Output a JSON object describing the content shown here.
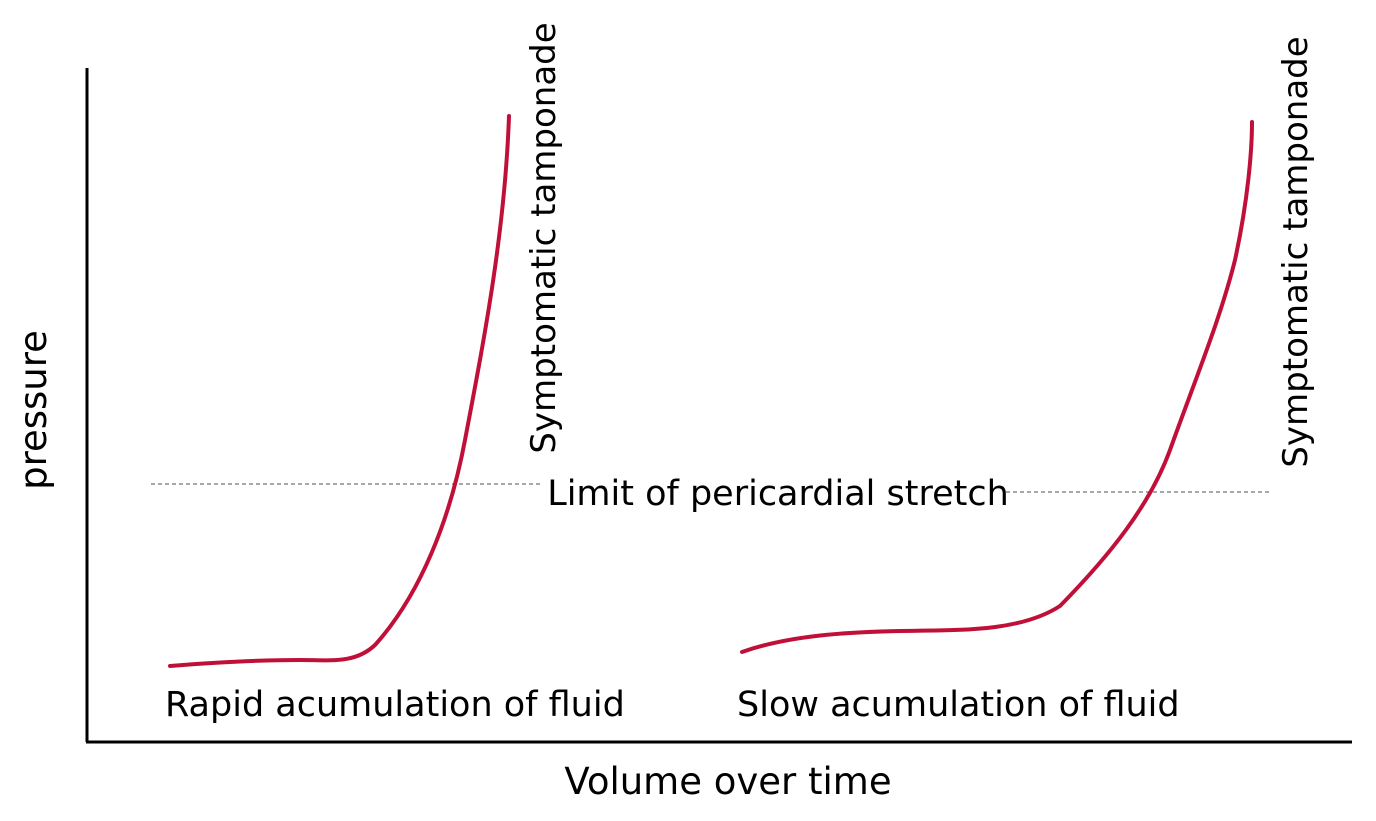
{
  "diagram": {
    "y_axis_label": "pressure",
    "x_axis_label": "Volume over time",
    "limit_label": "Limit of pericardial stretch",
    "curve_color": "#c0103a",
    "curves": [
      {
        "id": "rapid",
        "caption": "Rapid acumulation of fluid",
        "end_label": "Symptomatic tamponade"
      },
      {
        "id": "slow",
        "caption": "Slow acumulation of fluid",
        "end_label": "Symptomatic tamponade"
      }
    ]
  }
}
